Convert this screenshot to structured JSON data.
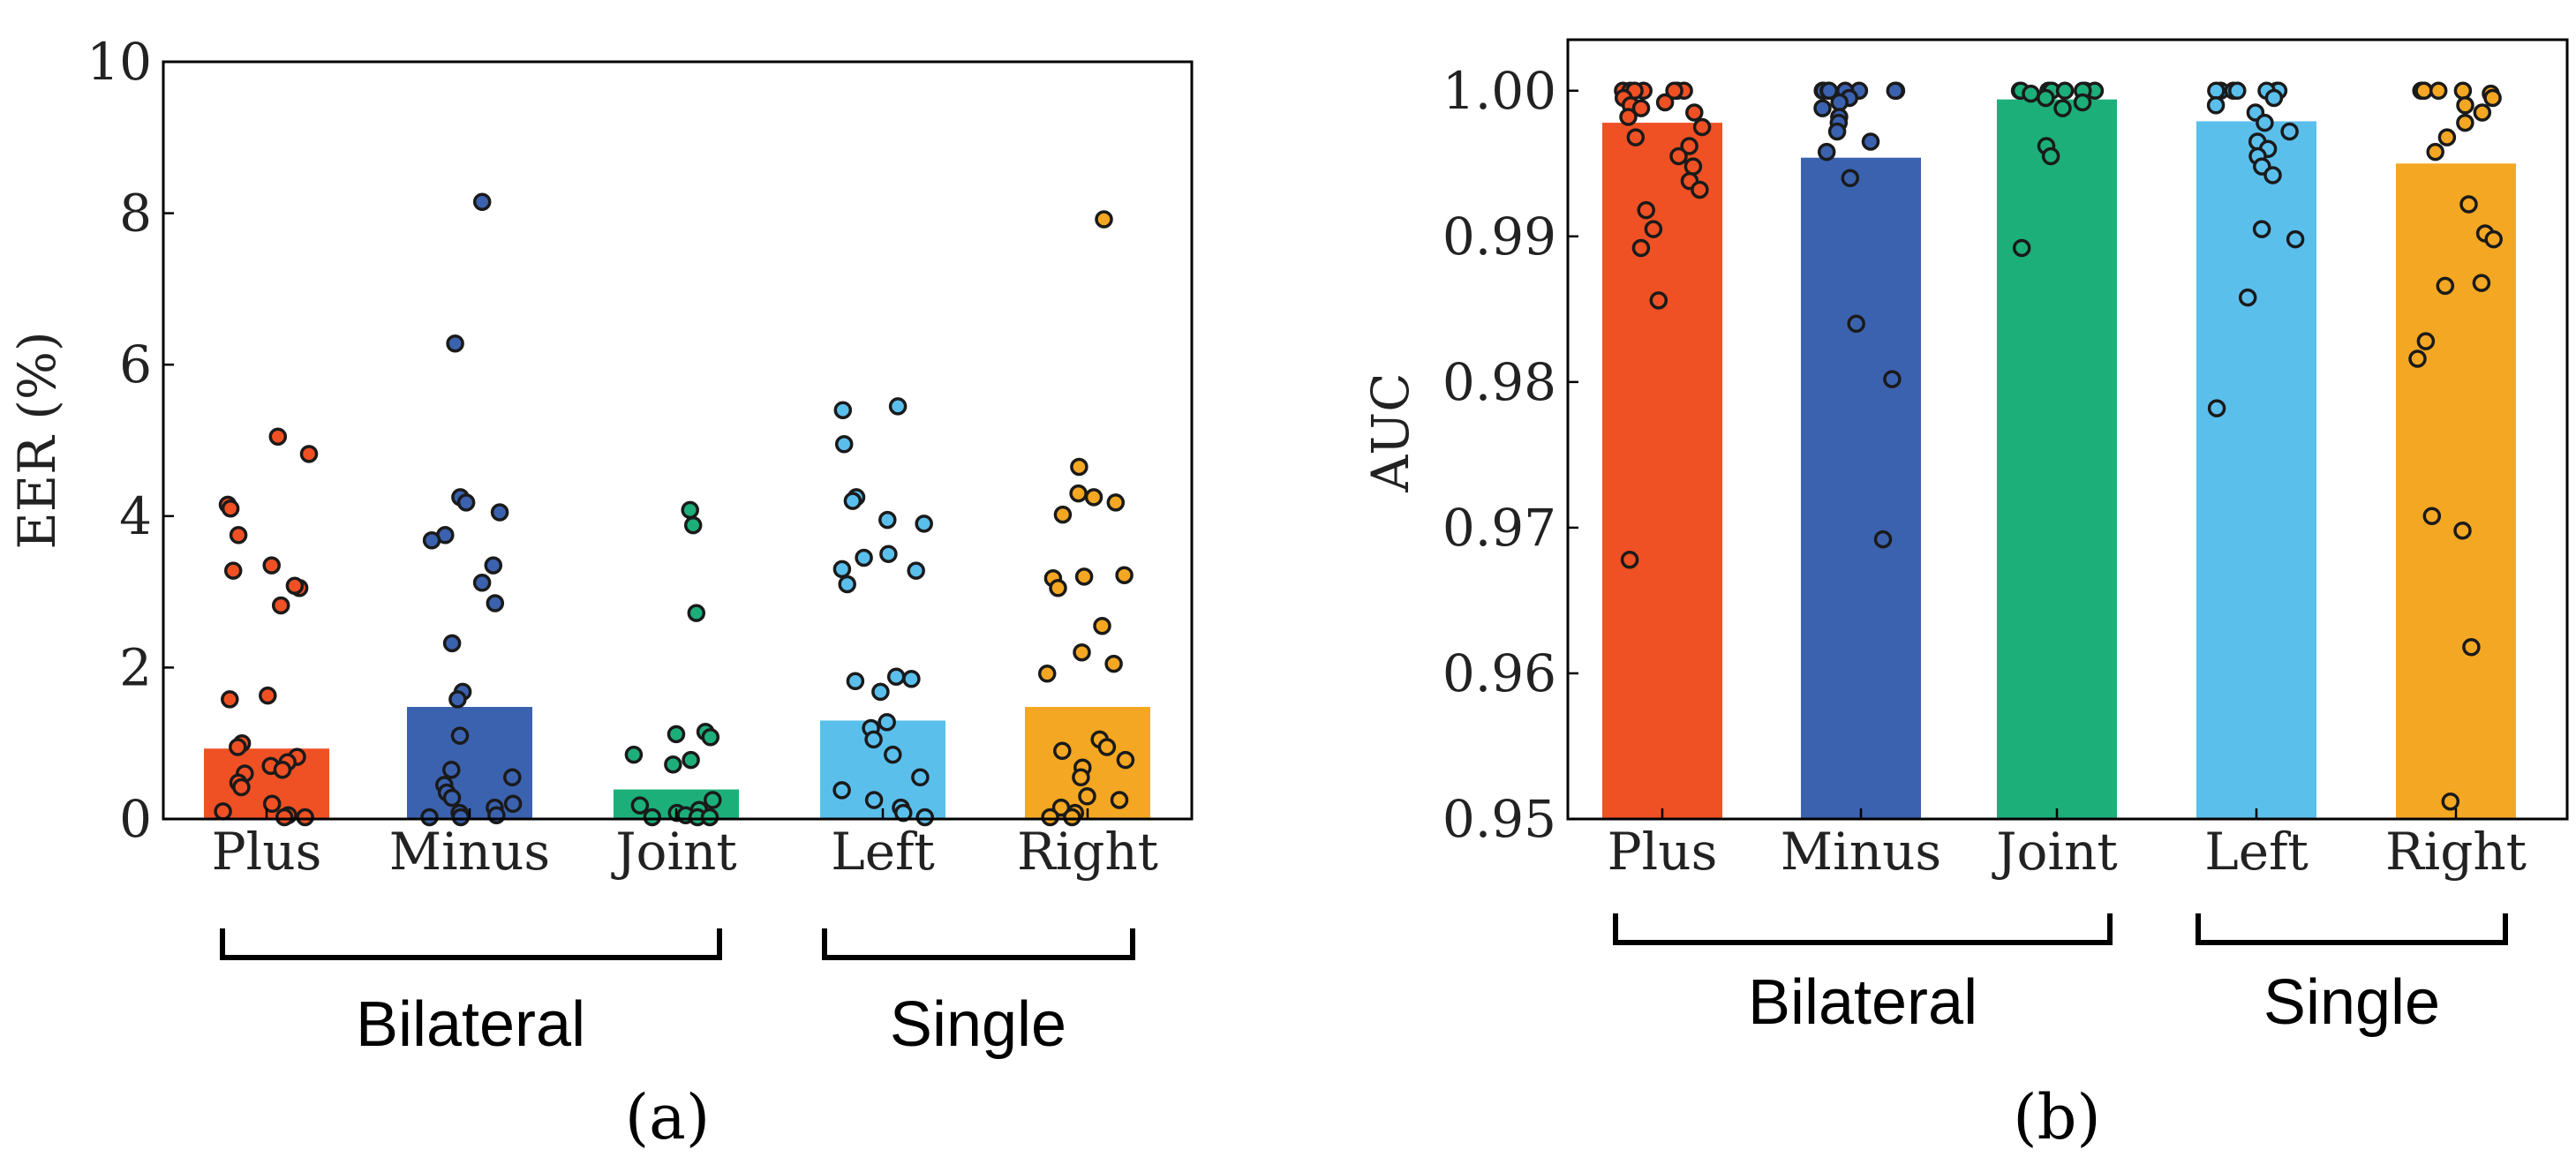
{
  "colors": {
    "Plus": "#EF5124",
    "Minus": "#3B62AE",
    "Joint": "#1DAF7A",
    "Left": "#5BBFEC",
    "Right": "#F4A722"
  },
  "chart_data": [
    {
      "id": "a",
      "type": "bar",
      "caption": "(a)",
      "ylabel": "EER (%)",
      "xlabel": "",
      "ylim": [
        0,
        10
      ],
      "yticks": [
        0,
        2,
        4,
        6,
        8,
        10
      ],
      "ytick_labels": [
        "0",
        "2",
        "4",
        "6",
        "8",
        "10"
      ],
      "categories": [
        "Plus",
        "Minus",
        "Joint",
        "Left",
        "Right"
      ],
      "values": [
        0.93,
        1.48,
        0.39,
        1.3,
        1.48
      ],
      "groups": [
        {
          "label": "Bilateral",
          "categories": [
            "Plus",
            "Minus",
            "Joint"
          ]
        },
        {
          "label": "Single",
          "categories": [
            "Left",
            "Right"
          ]
        }
      ],
      "points": {
        "Plus": [
          5.05,
          4.82,
          4.15,
          4.1,
          3.75,
          3.35,
          3.28,
          3.05,
          3.08,
          2.82,
          1.63,
          1.58,
          1.0,
          0.95,
          0.82,
          0.75,
          0.7,
          0.65,
          0.6,
          0.48,
          0.42,
          0.2,
          0.1,
          0.05,
          0.02,
          0.0
        ],
        "Minus": [
          8.15,
          6.28,
          4.25,
          4.18,
          4.05,
          3.75,
          3.68,
          3.35,
          3.12,
          2.85,
          2.32,
          1.68,
          1.58,
          1.1,
          0.65,
          0.55,
          0.45,
          0.35,
          0.28,
          0.2,
          0.15,
          0.08,
          0.05,
          0.02,
          0.0
        ],
        "Joint": [
          4.08,
          3.88,
          2.72,
          1.15,
          1.12,
          1.08,
          0.85,
          0.78,
          0.72,
          0.25,
          0.18,
          0.12,
          0.08,
          0.05,
          0.02,
          0.0,
          0.0
        ],
        "Left": [
          5.45,
          5.4,
          4.95,
          4.25,
          4.2,
          3.95,
          3.9,
          3.5,
          3.45,
          3.3,
          3.28,
          3.1,
          1.88,
          1.85,
          1.82,
          1.68,
          1.28,
          1.2,
          1.05,
          0.85,
          0.55,
          0.38,
          0.25,
          0.15,
          0.08,
          0.02
        ],
        "Right": [
          7.92,
          4.65,
          4.3,
          4.25,
          4.18,
          4.02,
          3.22,
          3.2,
          3.18,
          3.05,
          2.55,
          2.2,
          2.05,
          1.92,
          1.05,
          0.95,
          0.9,
          0.78,
          0.68,
          0.55,
          0.3,
          0.25,
          0.15,
          0.08,
          0.02,
          0.0
        ]
      }
    },
    {
      "id": "b",
      "type": "bar",
      "caption": "(b)",
      "ylabel": "AUC",
      "xlabel": "",
      "ylim": [
        0.95,
        1.0035
      ],
      "yticks": [
        0.95,
        0.96,
        0.97,
        0.98,
        0.99,
        1.0
      ],
      "ytick_labels": [
        "0.95",
        "0.96",
        "0.97",
        "0.98",
        "0.99",
        "1.00"
      ],
      "categories": [
        "Plus",
        "Minus",
        "Joint",
        "Left",
        "Right"
      ],
      "values": [
        0.9978,
        0.9954,
        0.9994,
        0.9979,
        0.995
      ],
      "groups": [
        {
          "label": "Bilateral",
          "categories": [
            "Plus",
            "Minus",
            "Joint"
          ]
        },
        {
          "label": "Single",
          "categories": [
            "Left",
            "Right"
          ]
        }
      ],
      "points": {
        "Plus": [
          1.0,
          1.0,
          1.0,
          1.0,
          1.0,
          1.0,
          1.0,
          0.9995,
          0.9992,
          0.999,
          0.9988,
          0.9985,
          0.9982,
          0.9975,
          0.9968,
          0.9962,
          0.9955,
          0.9948,
          0.9938,
          0.9932,
          0.9918,
          0.9905,
          0.9892,
          0.9856,
          0.9678
        ],
        "Minus": [
          1.0,
          1.0,
          1.0,
          1.0,
          1.0,
          1.0,
          1.0,
          1.0,
          0.9995,
          0.9992,
          0.9988,
          0.9982,
          0.9978,
          0.9972,
          0.9965,
          0.9958,
          0.994,
          0.984,
          0.9802,
          0.9692
        ],
        "Joint": [
          1.0,
          1.0,
          1.0,
          1.0,
          1.0,
          1.0,
          1.0,
          1.0,
          0.9998,
          0.9995,
          0.9992,
          0.9988,
          0.9962,
          0.9955,
          0.9892
        ],
        "Left": [
          1.0,
          1.0,
          1.0,
          1.0,
          1.0,
          1.0,
          1.0,
          0.9995,
          0.999,
          0.9985,
          0.9978,
          0.9972,
          0.9965,
          0.996,
          0.9955,
          0.9948,
          0.9942,
          0.9905,
          0.9898,
          0.9858,
          0.9782
        ],
        "Right": [
          1.0,
          1.0,
          1.0,
          1.0,
          1.0,
          0.9998,
          0.9995,
          0.999,
          0.9985,
          0.9978,
          0.9968,
          0.9958,
          0.9922,
          0.9902,
          0.9898,
          0.9868,
          0.9866,
          0.9828,
          0.9816,
          0.9708,
          0.9698,
          0.9618,
          0.9512
        ]
      }
    }
  ]
}
